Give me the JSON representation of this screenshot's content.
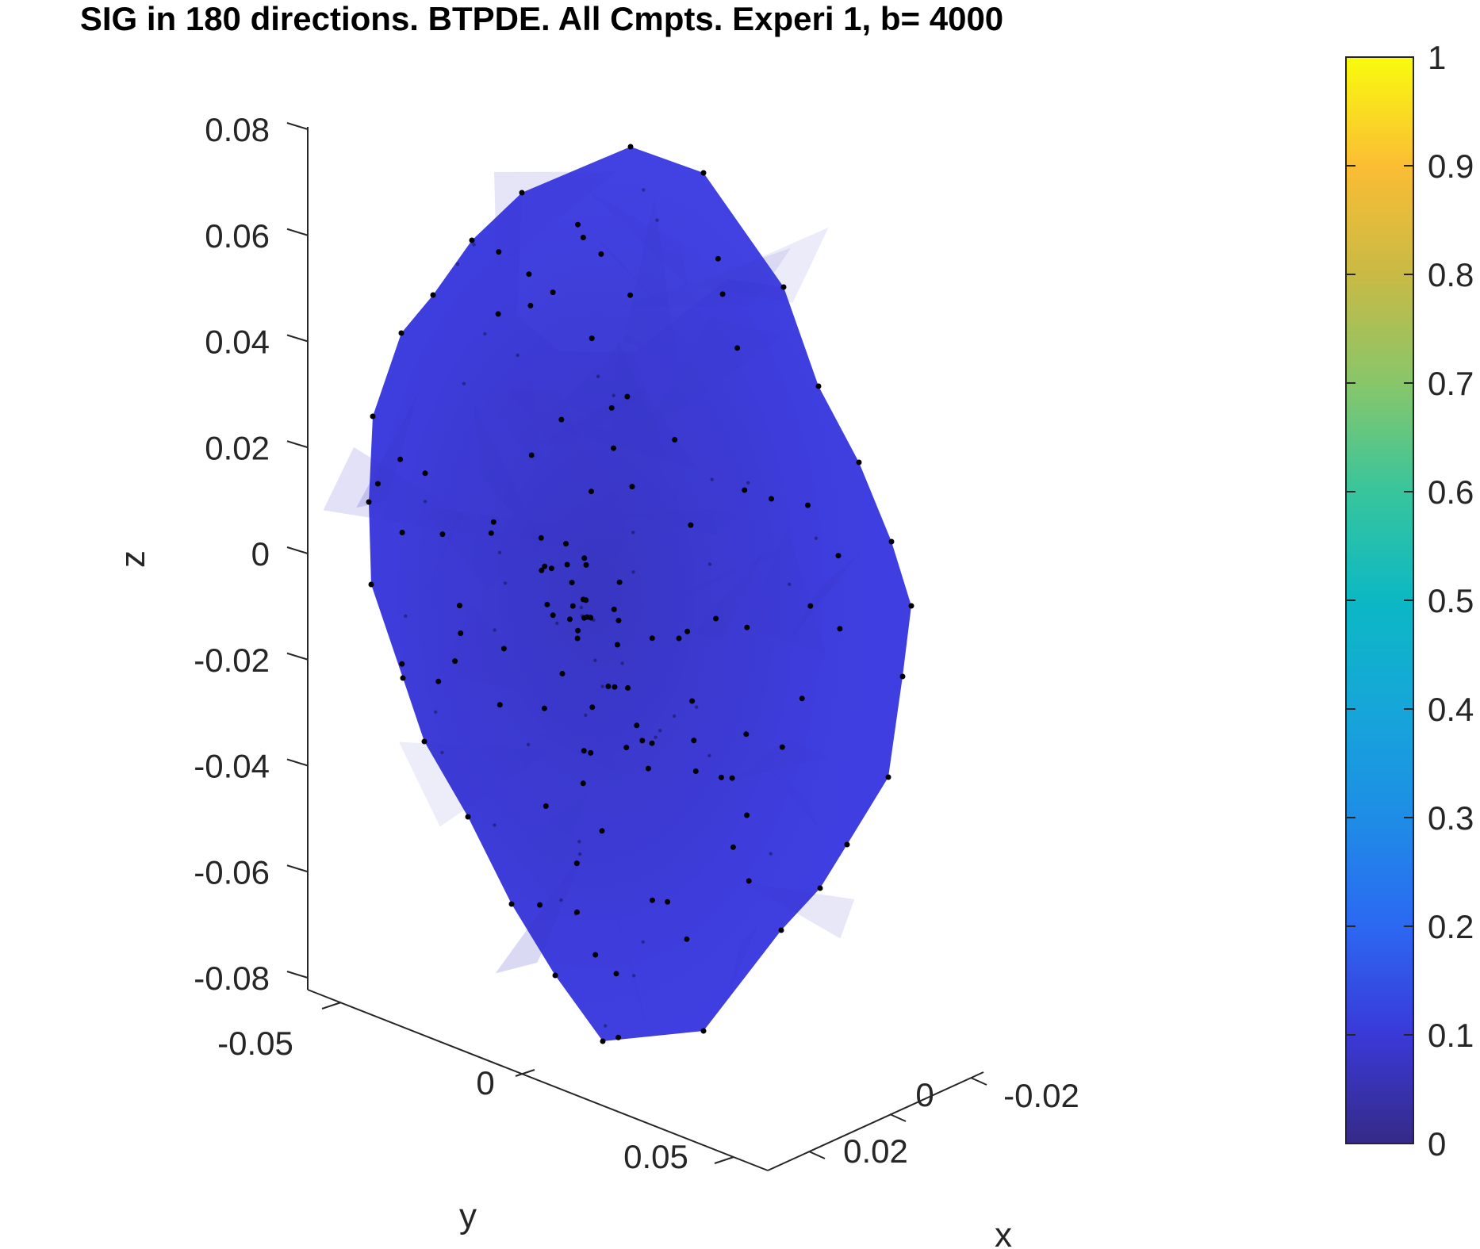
{
  "chart_data": {
    "type": "scatter",
    "title": "SIG in 180 directions. BTPDE. All Cmpts. Experi 1, b= 4000",
    "xlabel": "x",
    "ylabel": "y",
    "zlabel": "z",
    "x_ticks": [
      "-0.02",
      "0",
      "0.02"
    ],
    "y_ticks": [
      "-0.05",
      "0",
      "0.05"
    ],
    "z_ticks": [
      "0.08",
      "0.06",
      "0.04",
      "0.02",
      "0",
      "-0.02",
      "-0.04",
      "-0.06",
      "-0.08"
    ],
    "zlim": [
      -0.08,
      0.08
    ],
    "colorbar": {
      "colormap": "parula",
      "range": [
        0,
        1
      ],
      "ticks": [
        "0",
        "0.1",
        "0.2",
        "0.3",
        "0.4",
        "0.5",
        "0.6",
        "0.7",
        "0.8",
        "0.9",
        "1"
      ]
    },
    "surface_color": "#3f3ee0",
    "surface_color_dark": "#3a37c7",
    "point_color": "#000000",
    "grid": false
  }
}
